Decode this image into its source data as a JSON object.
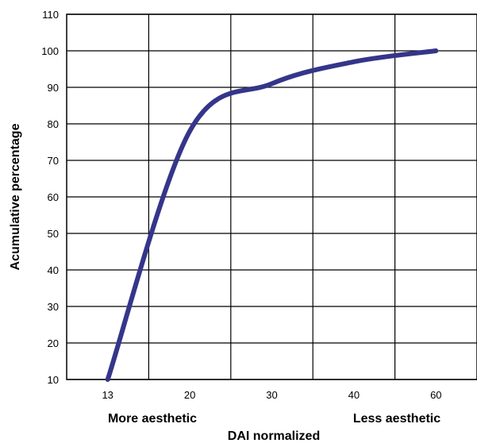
{
  "chart_data": {
    "type": "line",
    "title": "",
    "xlabel": "DAI normalized",
    "ylabel": "Acumulative percentage",
    "x_categories": [
      "13",
      "20",
      "30",
      "40",
      "60"
    ],
    "x_annotations": {
      "left": "More  aesthetic",
      "right": "Less  aesthetic"
    },
    "ylim": [
      10,
      110
    ],
    "yticks": [
      10,
      20,
      30,
      40,
      50,
      60,
      70,
      80,
      90,
      100,
      110
    ],
    "grid": true,
    "legend": "none",
    "series": [
      {
        "color": "#35358a",
        "points": [
          {
            "x": 13,
            "y": 10
          },
          {
            "x": 20,
            "y": 78
          },
          {
            "x": 30,
            "y": 91
          },
          {
            "x": 40,
            "y": 97
          },
          {
            "x": 60,
            "y": 100
          }
        ]
      }
    ]
  }
}
